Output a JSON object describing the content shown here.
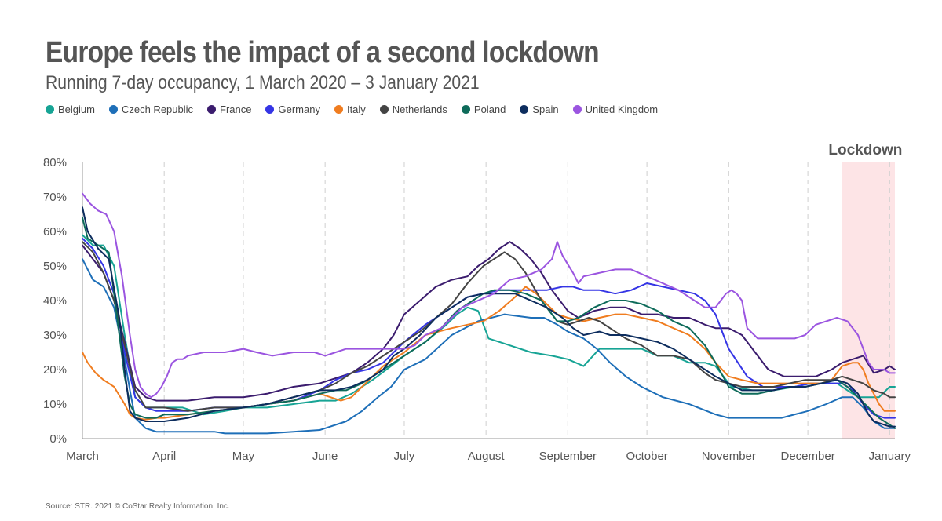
{
  "header": {
    "title": "Europe feels the impact of a second lockdown",
    "subtitle": "Running 7-day occupancy, 1 March 2020 – 3 January 2021"
  },
  "footer": {
    "source": "Source: STR. 2021 © CoStar Realty Information, Inc."
  },
  "chart_data": {
    "type": "line",
    "title": "Europe feels the impact of a second lockdown",
    "subtitle": "Running 7-day occupancy, 1 March 2020 – 3 January 2021",
    "xlabel": "",
    "ylabel": "",
    "x_unit": "days since 1 March 2020",
    "xlim": [
      0,
      308
    ],
    "ylim": [
      0,
      80
    ],
    "grid": {
      "vertical": "dashed",
      "horizontal": false
    },
    "legend_position": "top-left",
    "y_ticks": [
      {
        "value": 0,
        "label": "0%"
      },
      {
        "value": 10,
        "label": "10%"
      },
      {
        "value": 20,
        "label": "20%"
      },
      {
        "value": 30,
        "label": "30%"
      },
      {
        "value": 40,
        "label": "40%"
      },
      {
        "value": 50,
        "label": "50%"
      },
      {
        "value": 60,
        "label": "60%"
      },
      {
        "value": 70,
        "label": "70%"
      },
      {
        "value": 80,
        "label": "80%"
      }
    ],
    "x_ticks": [
      {
        "value": 0,
        "label": "March"
      },
      {
        "value": 31,
        "label": "April"
      },
      {
        "value": 61,
        "label": "May"
      },
      {
        "value": 92,
        "label": "June"
      },
      {
        "value": 122,
        "label": "July"
      },
      {
        "value": 153,
        "label": "August"
      },
      {
        "value": 184,
        "label": "September"
      },
      {
        "value": 214,
        "label": "October"
      },
      {
        "value": 245,
        "label": "November"
      },
      {
        "value": 275,
        "label": "December"
      },
      {
        "value": 306,
        "label": "January"
      }
    ],
    "annotations": [
      {
        "type": "shaded-band",
        "label": "Lockdown",
        "x_start": 288,
        "x_end": 308,
        "color": "#fde4e6"
      }
    ],
    "series": [
      {
        "name": "Belgium",
        "color": "#17a495",
        "x": [
          0,
          4,
          8,
          12,
          16,
          20,
          24,
          28,
          31,
          38,
          46,
          54,
          61,
          70,
          80,
          90,
          96,
          102,
          110,
          117,
          122,
          130,
          138,
          142,
          146,
          150,
          154,
          162,
          170,
          178,
          184,
          190,
          196,
          202,
          206,
          212,
          218,
          224,
          230,
          236,
          240,
          246,
          254,
          262,
          270,
          276,
          282,
          286,
          290,
          294,
          298,
          302,
          306,
          308
        ],
        "y": [
          59,
          56,
          56,
          50,
          30,
          12,
          9,
          9,
          9,
          9,
          7,
          8,
          9,
          9,
          10,
          11,
          11,
          13,
          17,
          21,
          24,
          28,
          33,
          36,
          38,
          37,
          29,
          27,
          25,
          24,
          23,
          21,
          26,
          26,
          26,
          26,
          24,
          24,
          22,
          22,
          21,
          15,
          14,
          14,
          15,
          16,
          16,
          16,
          14,
          12,
          12,
          12,
          15,
          15
        ]
      },
      {
        "name": "Czech Republic",
        "color": "#1e6fb8",
        "x": [
          0,
          4,
          8,
          12,
          16,
          18,
          20,
          24,
          28,
          31,
          40,
          50,
          54,
          61,
          70,
          80,
          90,
          92,
          100,
          106,
          112,
          117,
          122,
          130,
          140,
          150,
          160,
          170,
          175,
          180,
          184,
          190,
          195,
          200,
          206,
          212,
          220,
          230,
          240,
          245,
          255,
          265,
          275,
          282,
          288,
          292,
          296,
          300,
          304,
          308
        ],
        "y": [
          52,
          46,
          44,
          38,
          23,
          14,
          6,
          3,
          2,
          2,
          2,
          2,
          1.5,
          1.5,
          1.5,
          2,
          2.5,
          3,
          5,
          8,
          12,
          15,
          20,
          23,
          30,
          34,
          36,
          35,
          35,
          33,
          31,
          29,
          26,
          22,
          18,
          15,
          12,
          10,
          7,
          6,
          6,
          6,
          8,
          10,
          12,
          12,
          9,
          5,
          3,
          3
        ]
      },
      {
        "name": "France",
        "color": "#3b1c6e",
        "x": [
          0,
          4,
          8,
          12,
          16,
          20,
          24,
          28,
          31,
          40,
          50,
          61,
          70,
          80,
          90,
          98,
          102,
          108,
          114,
          118,
          122,
          128,
          134,
          140,
          146,
          150,
          154,
          158,
          162,
          166,
          170,
          174,
          178,
          184,
          188,
          194,
          200,
          206,
          212,
          218,
          224,
          230,
          236,
          240,
          245,
          250,
          255,
          260,
          266,
          272,
          278,
          284,
          288,
          292,
          296,
          300,
          304,
          306,
          308
        ],
        "y": [
          56,
          52,
          48,
          40,
          28,
          15,
          12,
          11,
          11,
          11,
          12,
          12,
          13,
          15,
          16,
          18,
          19,
          22,
          26,
          30,
          36,
          40,
          44,
          46,
          47,
          50,
          52,
          55,
          57,
          55,
          52,
          48,
          43,
          37,
          35,
          37,
          38,
          38,
          36,
          36,
          35,
          35,
          33,
          32,
          32,
          30,
          25,
          20,
          18,
          18,
          18,
          20,
          22,
          23,
          24,
          19,
          20,
          21,
          20
        ]
      },
      {
        "name": "Germany",
        "color": "#3535e5",
        "x": [
          0,
          4,
          8,
          12,
          16,
          20,
          24,
          28,
          31,
          40,
          50,
          61,
          70,
          80,
          90,
          96,
          102,
          108,
          114,
          118,
          122,
          130,
          140,
          146,
          152,
          158,
          164,
          170,
          176,
          182,
          186,
          190,
          196,
          202,
          208,
          214,
          220,
          226,
          232,
          236,
          240,
          245,
          252,
          258,
          264,
          270,
          276,
          282,
          288,
          292,
          296,
          300,
          304,
          308
        ],
        "y": [
          58,
          55,
          50,
          42,
          25,
          12,
          9,
          8,
          8,
          8,
          9,
          9,
          10,
          11,
          14,
          17,
          19,
          20,
          22,
          25,
          28,
          33,
          38,
          41,
          42,
          43,
          43,
          43,
          43,
          44,
          44,
          43,
          43,
          42,
          43,
          45,
          44,
          43,
          42,
          40,
          36,
          26,
          18,
          15,
          15,
          15,
          16,
          16,
          16,
          14,
          10,
          7,
          6,
          6
        ]
      },
      {
        "name": "Italy",
        "color": "#f07d20",
        "x": [
          0,
          2,
          5,
          8,
          12,
          16,
          18,
          20,
          24,
          28,
          31,
          40,
          50,
          61,
          70,
          80,
          90,
          94,
          98,
          102,
          106,
          110,
          114,
          118,
          122,
          130,
          140,
          146,
          152,
          158,
          164,
          168,
          172,
          176,
          180,
          184,
          190,
          196,
          202,
          206,
          212,
          218,
          224,
          230,
          236,
          240,
          245,
          250,
          256,
          262,
          268,
          274,
          280,
          284,
          288,
          292,
          294,
          296,
          298,
          300,
          302,
          304,
          306,
          308
        ],
        "y": [
          25,
          22,
          19,
          17,
          15,
          10,
          7,
          6,
          5.5,
          6,
          6,
          7,
          8,
          9,
          10,
          11,
          13,
          12,
          11,
          12,
          15,
          18,
          21,
          23,
          25,
          30,
          32,
          33,
          34,
          37,
          41,
          44,
          42,
          39,
          36,
          35,
          34,
          35,
          36,
          36,
          35,
          34,
          32,
          30,
          26,
          22,
          18,
          17,
          16,
          16,
          16,
          16,
          16,
          17,
          21,
          22,
          22,
          20,
          16,
          13,
          10,
          8,
          8,
          8
        ]
      },
      {
        "name": "Netherlands",
        "color": "#444444",
        "x": [
          0,
          4,
          8,
          12,
          16,
          20,
          24,
          28,
          31,
          40,
          50,
          61,
          70,
          80,
          90,
          96,
          102,
          108,
          112,
          116,
          122,
          128,
          134,
          140,
          146,
          152,
          156,
          160,
          164,
          168,
          174,
          180,
          184,
          188,
          192,
          196,
          200,
          206,
          212,
          218,
          224,
          230,
          236,
          240,
          245,
          250,
          256,
          262,
          268,
          274,
          280,
          284,
          288,
          292,
          296,
          300,
          304,
          306,
          308
        ],
        "y": [
          57,
          54,
          48,
          40,
          27,
          14,
          9,
          9,
          9,
          8,
          9,
          9,
          10,
          12,
          14,
          16,
          19,
          21,
          23,
          25,
          28,
          31,
          35,
          39,
          45,
          50,
          52,
          54,
          52,
          48,
          40,
          34,
          33,
          34,
          35,
          34,
          32,
          29,
          27,
          24,
          24,
          23,
          19,
          17,
          16,
          15,
          15,
          15,
          16,
          17,
          17,
          17,
          18,
          17,
          16,
          14,
          13,
          12,
          12
        ]
      },
      {
        "name": "Poland",
        "color": "#0e6b5a",
        "x": [
          0,
          2,
          6,
          10,
          14,
          16,
          18,
          20,
          24,
          28,
          31,
          40,
          50,
          61,
          70,
          80,
          90,
          96,
          100,
          106,
          112,
          118,
          122,
          130,
          136,
          142,
          148,
          152,
          156,
          162,
          168,
          174,
          180,
          184,
          188,
          194,
          200,
          206,
          212,
          218,
          224,
          230,
          236,
          240,
          245,
          250,
          256,
          262,
          268,
          274,
          280,
          286,
          290,
          294,
          298,
          302,
          306,
          308
        ],
        "y": [
          64,
          58,
          56,
          54,
          30,
          18,
          10,
          7,
          6,
          6,
          7,
          7,
          8,
          9,
          10,
          11,
          13,
          14,
          14,
          16,
          19,
          22,
          24,
          28,
          32,
          37,
          40,
          42,
          43,
          43,
          42,
          40,
          34,
          34,
          35,
          38,
          40,
          40,
          39,
          37,
          34,
          32,
          27,
          22,
          15,
          13,
          13,
          14,
          15,
          15,
          16,
          17,
          15,
          12,
          9,
          6,
          4,
          3
        ]
      },
      {
        "name": "Spain",
        "color": "#0d2d5e",
        "x": [
          0,
          2,
          6,
          10,
          14,
          16,
          18,
          20,
          24,
          28,
          31,
          40,
          50,
          61,
          70,
          80,
          90,
          96,
          102,
          108,
          114,
          118,
          122,
          128,
          134,
          140,
          146,
          152,
          158,
          164,
          170,
          176,
          182,
          186,
          190,
          196,
          200,
          206,
          212,
          218,
          224,
          230,
          236,
          240,
          245,
          250,
          256,
          262,
          268,
          274,
          280,
          286,
          290,
          294,
          296,
          298,
          300,
          304,
          306,
          308
        ],
        "y": [
          67,
          60,
          55,
          52,
          35,
          20,
          8,
          6,
          5,
          5,
          5,
          6,
          8,
          9,
          10,
          12,
          14,
          14,
          15,
          17,
          20,
          24,
          26,
          30,
          35,
          38,
          41,
          42,
          42,
          42,
          40,
          38,
          35,
          32,
          30,
          31,
          30,
          30,
          29,
          28,
          26,
          23,
          20,
          18,
          16,
          14,
          14,
          14,
          15,
          15,
          16,
          17,
          16,
          13,
          10,
          7,
          5,
          4,
          3.5,
          3.5
        ]
      },
      {
        "name": "United Kingdom",
        "color": "#9b55e0",
        "x": [
          0,
          3,
          6,
          9,
          12,
          15,
          18,
          20,
          22,
          24,
          26,
          28,
          30,
          32,
          34,
          36,
          38,
          40,
          46,
          54,
          61,
          66,
          72,
          80,
          88,
          92,
          96,
          100,
          106,
          112,
          118,
          122,
          126,
          130,
          136,
          140,
          144,
          150,
          156,
          162,
          168,
          174,
          178,
          180,
          182,
          186,
          188,
          190,
          196,
          202,
          208,
          214,
          220,
          226,
          232,
          236,
          240,
          242,
          244,
          246,
          248,
          250,
          252,
          256,
          262,
          266,
          270,
          274,
          278,
          282,
          286,
          290,
          294,
          298,
          300,
          302,
          304,
          306,
          308
        ],
        "y": [
          71,
          68,
          66,
          65,
          60,
          47,
          30,
          20,
          15,
          13,
          12,
          13,
          15,
          18,
          22,
          23,
          23,
          24,
          25,
          25,
          26,
          25,
          24,
          25,
          25,
          24,
          25,
          26,
          26,
          26,
          26,
          26,
          27,
          30,
          32,
          35,
          38,
          40,
          42,
          46,
          47,
          49,
          52,
          57,
          53,
          48,
          45,
          47,
          48,
          49,
          49,
          47,
          45,
          43,
          40,
          38,
          38,
          40,
          42,
          43,
          42,
          40,
          32,
          29,
          29,
          29,
          29,
          30,
          33,
          34,
          35,
          34,
          30,
          22,
          20,
          20,
          20,
          19,
          19
        ]
      }
    ]
  }
}
